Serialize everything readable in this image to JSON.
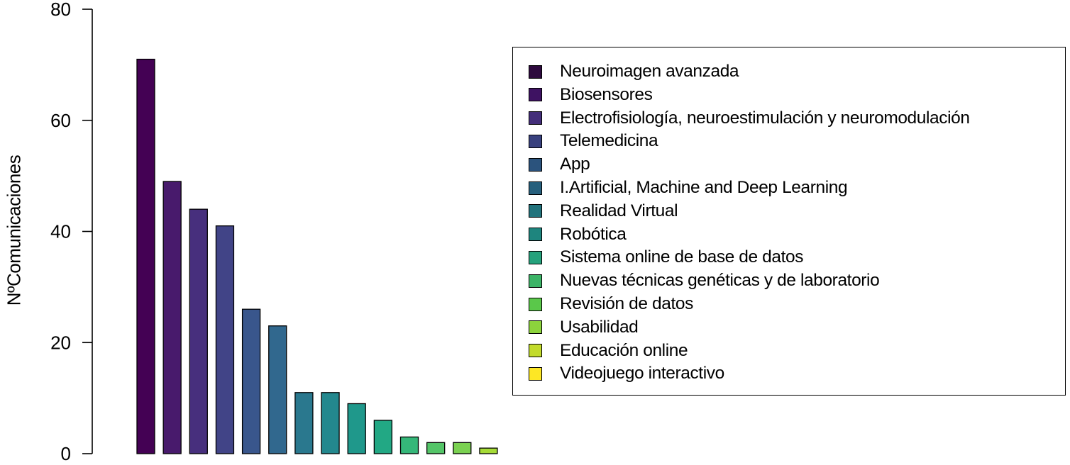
{
  "chart_data": {
    "type": "bar",
    "title": "",
    "xlabel": "",
    "ylabel": "NºComunicaciones",
    "ylim": [
      0,
      80
    ],
    "yticks": [
      0,
      20,
      40,
      60,
      80
    ],
    "grid": false,
    "legend_position": "right",
    "categories": [
      "Neuroimagen avanzada",
      "Biosensores",
      "Electrofisiología, neuroestimulación y neuromodulación",
      "Telemedicina",
      "App",
      "I.Artificial, Machine and Deep Learning",
      "Realidad Virtual",
      "Robótica",
      "Sistema online de base de datos",
      "Nuevas técnicas genéticas y de laboratorio",
      "Revisión de datos",
      "Usabilidad",
      "Educación online",
      "Videojuego interactivo"
    ],
    "values": [
      71,
      49,
      44,
      41,
      26,
      23,
      11,
      11,
      9,
      6,
      3,
      2,
      2,
      1
    ],
    "colors": [
      "#440154",
      "#481A6C",
      "#472F7D",
      "#414487",
      "#39568C",
      "#31688E",
      "#2A788E",
      "#23888E",
      "#1F988B",
      "#22A884",
      "#35B779",
      "#54C568",
      "#7AD151",
      "#A5DB36"
    ]
  },
  "legend_colors": [
    "#2E0A3E",
    "#3E1262",
    "#442E7A",
    "#38407E",
    "#2B537D",
    "#27607D",
    "#22737C",
    "#1E857E",
    "#25A27C",
    "#3CB467",
    "#5AC84A",
    "#8CD33C",
    "#C2DB2B",
    "#FDE725"
  ]
}
